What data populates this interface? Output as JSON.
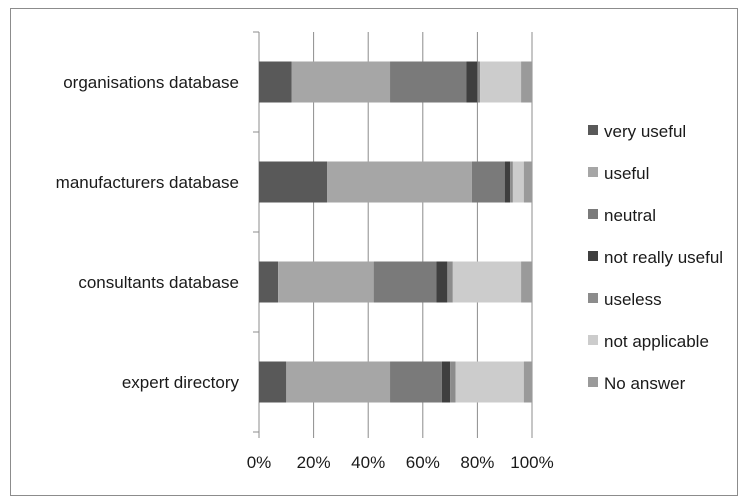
{
  "chart_data": {
    "type": "bar",
    "orientation": "horizontal",
    "stacked": "percent",
    "categories": [
      "expert directory",
      "consultants database",
      "manufacturers database",
      "organisations database"
    ],
    "series": [
      {
        "name": "very useful",
        "color": "#595959",
        "values": [
          10,
          7,
          25,
          12
        ]
      },
      {
        "name": "useful",
        "color": "#a6a6a6",
        "values": [
          38,
          35,
          53,
          36
        ]
      },
      {
        "name": "neutral",
        "color": "#7a7a7a",
        "values": [
          19,
          23,
          12,
          28
        ]
      },
      {
        "name": "not really useful",
        "color": "#3f3f3f",
        "values": [
          3,
          4,
          2,
          4
        ]
      },
      {
        "name": "useless",
        "color": "#8c8c8c",
        "values": [
          2,
          2,
          1,
          1
        ]
      },
      {
        "name": "not applicable",
        "color": "#cccccc",
        "values": [
          25,
          25,
          4,
          15
        ]
      },
      {
        "name": "No answer",
        "color": "#9a9a9a",
        "values": [
          3,
          4,
          3,
          4
        ]
      }
    ],
    "xlim": [
      0,
      100
    ],
    "x_ticks": [
      "0%",
      "20%",
      "40%",
      "60%",
      "80%",
      "100%"
    ],
    "grid": "vertical",
    "legend_position": "right",
    "title": "",
    "xlabel": "",
    "ylabel": ""
  }
}
